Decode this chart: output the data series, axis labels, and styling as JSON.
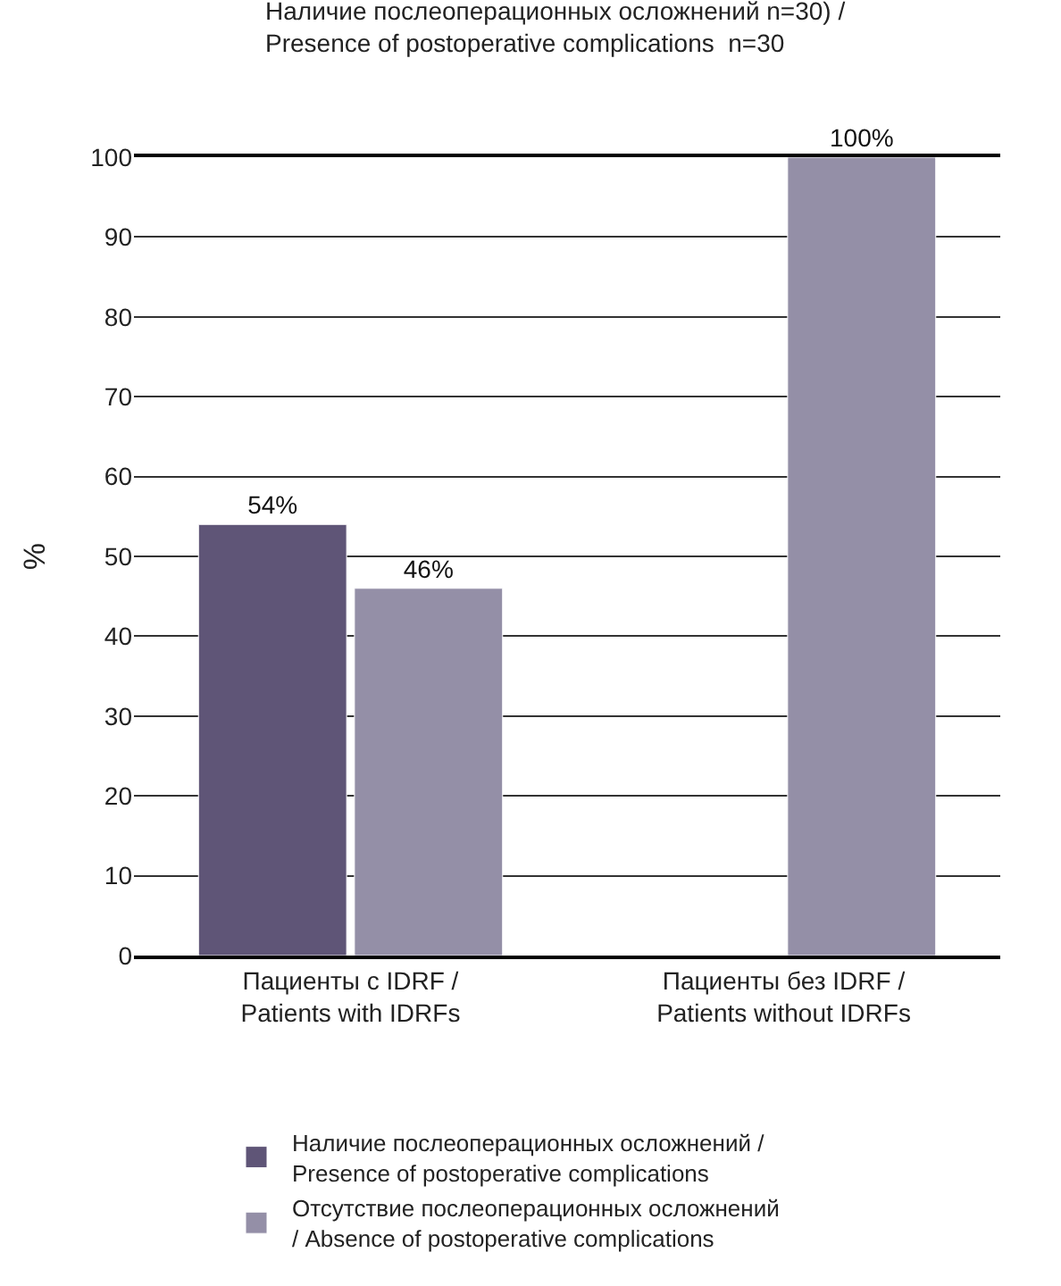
{
  "chart_data": {
    "type": "bar",
    "title": "Наличие послеоперационных осложнений n=30) /\nPresence of postoperative complications  n=30",
    "ylabel": "%",
    "categories": [
      "Пациенты с IDRF /\nPatients with IDRFs",
      "Пациенты без IDRF /\nPatients without IDRFs"
    ],
    "series": [
      {
        "name": "Наличие послеоперационных осложнений /\nPresence of postoperative complications",
        "color": "#5f5577",
        "values": [
          54,
          null
        ],
        "value_labels": [
          "54%",
          null
        ]
      },
      {
        "name": "Отсутствие послеоперационных осложнений\n/ Absence of postoperative complications",
        "color": "#948fa7",
        "values": [
          46,
          100
        ],
        "value_labels": [
          "46%",
          "100%"
        ]
      }
    ],
    "ylim": [
      0,
      100
    ],
    "yticks": [
      0,
      10,
      20,
      30,
      40,
      50,
      60,
      70,
      80,
      90,
      100
    ],
    "grid": "y",
    "legend": "bottom"
  }
}
